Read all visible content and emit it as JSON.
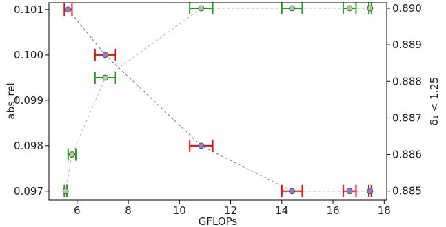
{
  "chart_data": {
    "type": "scatter",
    "xlabel": "GFLOPs",
    "ylabel_left": "abs_rel",
    "ylabel_right": "δ₁ < 1.25",
    "xlim": [
      4.9,
      18.1
    ],
    "ylim_left": [
      0.0968,
      0.10115
    ],
    "ylim_right": [
      0.88475,
      0.89015
    ],
    "x_ticks": [
      6,
      8,
      10,
      12,
      14,
      16,
      18
    ],
    "x_tick_labels": [
      "6",
      "8",
      "10",
      "12",
      "14",
      "16",
      "18"
    ],
    "y_left_ticks": [
      0.097,
      0.098,
      0.099,
      0.1,
      0.101
    ],
    "y_left_tick_labels": [
      "0.097",
      "0.098",
      "0.099",
      "0.100",
      "0.101"
    ],
    "y_right_ticks": [
      0.885,
      0.886,
      0.887,
      0.888,
      0.889,
      0.89
    ],
    "y_right_tick_labels": [
      "0.885",
      "0.886",
      "0.887",
      "0.888",
      "0.889",
      "0.890"
    ],
    "grid": false,
    "series": [
      {
        "axis": "left",
        "marker_color": "#8a7fe0",
        "errorbar_color": "#ff0000",
        "line_color": "#777777",
        "points": [
          {
            "x": 5.65,
            "y": 0.101,
            "xerr": 0.15
          },
          {
            "x": 7.1,
            "y": 0.1,
            "xerr": 0.4
          },
          {
            "x": 10.85,
            "y": 0.098,
            "xerr": 0.45
          },
          {
            "x": 14.4,
            "y": 0.097,
            "xerr": 0.4
          },
          {
            "x": 16.65,
            "y": 0.097,
            "xerr": 0.25
          },
          {
            "x": 17.45,
            "y": 0.097,
            "xerr": 0.05
          }
        ]
      },
      {
        "axis": "right",
        "marker_color": "#a6cf8a",
        "errorbar_color": "#1f9e1f",
        "line_color": "#b5b5b5",
        "points": [
          {
            "x": 5.55,
            "y": 0.885,
            "xerr": 0.05
          },
          {
            "x": 5.8,
            "y": 0.886,
            "xerr": 0.15
          },
          {
            "x": 7.1,
            "y": 0.8881,
            "xerr": 0.4
          },
          {
            "x": 10.85,
            "y": 0.89,
            "xerr": 0.45
          },
          {
            "x": 14.4,
            "y": 0.89,
            "xerr": 0.4
          },
          {
            "x": 16.65,
            "y": 0.89,
            "xerr": 0.25
          },
          {
            "x": 17.45,
            "y": 0.89,
            "xerr": 0.05
          }
        ]
      }
    ]
  }
}
